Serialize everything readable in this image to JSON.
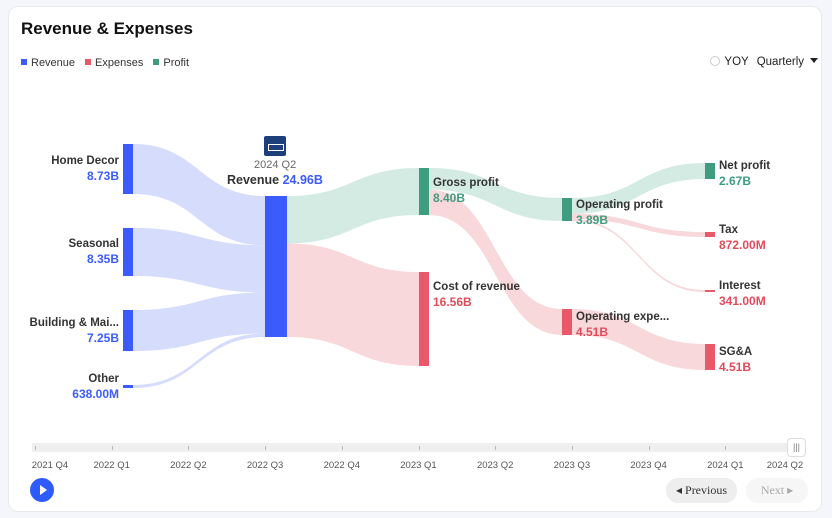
{
  "header": {
    "title": "Revenue & Expenses"
  },
  "legend": [
    {
      "label": "Revenue",
      "color": "#3b5bfd"
    },
    {
      "label": "Expenses",
      "color": "#e8596a"
    },
    {
      "label": "Profit",
      "color": "#3e9c7f"
    }
  ],
  "controls": {
    "yoy_label": "YOY",
    "period": "Quarterly"
  },
  "center": {
    "period": "2024 Q2",
    "label": "Revenue",
    "value": "24.96B"
  },
  "chart_data": {
    "type": "sankey",
    "period": "2024 Q2",
    "unit": "USD",
    "nodes": [
      {
        "id": "home_decor",
        "label": "Home Decor",
        "value_text": "8.73B",
        "value": 8.73,
        "kind": "revenue"
      },
      {
        "id": "seasonal",
        "label": "Seasonal",
        "value_text": "8.35B",
        "value": 8.35,
        "kind": "revenue"
      },
      {
        "id": "building",
        "label": "Building & Mai...",
        "value_text": "7.25B",
        "value": 7.25,
        "kind": "revenue"
      },
      {
        "id": "other",
        "label": "Other",
        "value_text": "638.00M",
        "value": 0.638,
        "kind": "revenue"
      },
      {
        "id": "revenue",
        "label": "Revenue",
        "value_text": "24.96B",
        "value": 24.96,
        "kind": "revenue"
      },
      {
        "id": "gross",
        "label": "Gross profit",
        "value_text": "8.40B",
        "value": 8.4,
        "kind": "profit"
      },
      {
        "id": "cost",
        "label": "Cost of revenue",
        "value_text": "16.56B",
        "value": 16.56,
        "kind": "expense"
      },
      {
        "id": "opprofit",
        "label": "Operating profit",
        "value_text": "3.89B",
        "value": 3.89,
        "kind": "profit"
      },
      {
        "id": "opexp",
        "label": "Operating expe...",
        "value_text": "4.51B",
        "value": 4.51,
        "kind": "expense"
      },
      {
        "id": "net",
        "label": "Net profit",
        "value_text": "2.67B",
        "value": 2.67,
        "kind": "profit"
      },
      {
        "id": "tax",
        "label": "Tax",
        "value_text": "872.00M",
        "value": 0.872,
        "kind": "expense"
      },
      {
        "id": "interest",
        "label": "Interest",
        "value_text": "341.00M",
        "value": 0.341,
        "kind": "expense"
      },
      {
        "id": "sga",
        "label": "SG&A",
        "value_text": "4.51B",
        "value": 4.51,
        "kind": "expense"
      }
    ],
    "links": [
      {
        "source": "home_decor",
        "target": "revenue",
        "value": 8.73
      },
      {
        "source": "seasonal",
        "target": "revenue",
        "value": 8.35
      },
      {
        "source": "building",
        "target": "revenue",
        "value": 7.25
      },
      {
        "source": "other",
        "target": "revenue",
        "value": 0.638
      },
      {
        "source": "revenue",
        "target": "gross",
        "value": 8.4
      },
      {
        "source": "revenue",
        "target": "cost",
        "value": 16.56
      },
      {
        "source": "gross",
        "target": "opprofit",
        "value": 3.89
      },
      {
        "source": "gross",
        "target": "opexp",
        "value": 4.51
      },
      {
        "source": "opprofit",
        "target": "net",
        "value": 2.67
      },
      {
        "source": "opprofit",
        "target": "tax",
        "value": 0.872
      },
      {
        "source": "opprofit",
        "target": "interest",
        "value": 0.341
      },
      {
        "source": "opexp",
        "target": "sga",
        "value": 4.51
      }
    ],
    "colors": {
      "revenue": "#3b5bfd",
      "profit": "#3e9c7f",
      "expense": "#e8596a",
      "revenue_link": "#d5dcfc",
      "profit_link": "#d3ebe3",
      "expense_link": "#f8d8da"
    }
  },
  "timeline": {
    "labels": [
      "2021 Q4",
      "2022 Q1",
      "2022 Q2",
      "2022 Q3",
      "2022 Q4",
      "2023 Q1",
      "2023 Q2",
      "2023 Q3",
      "2023 Q4",
      "2024 Q1",
      "2024 Q2"
    ],
    "selected": "2024 Q2"
  },
  "nav": {
    "previous": "Previous",
    "next": "Next"
  }
}
